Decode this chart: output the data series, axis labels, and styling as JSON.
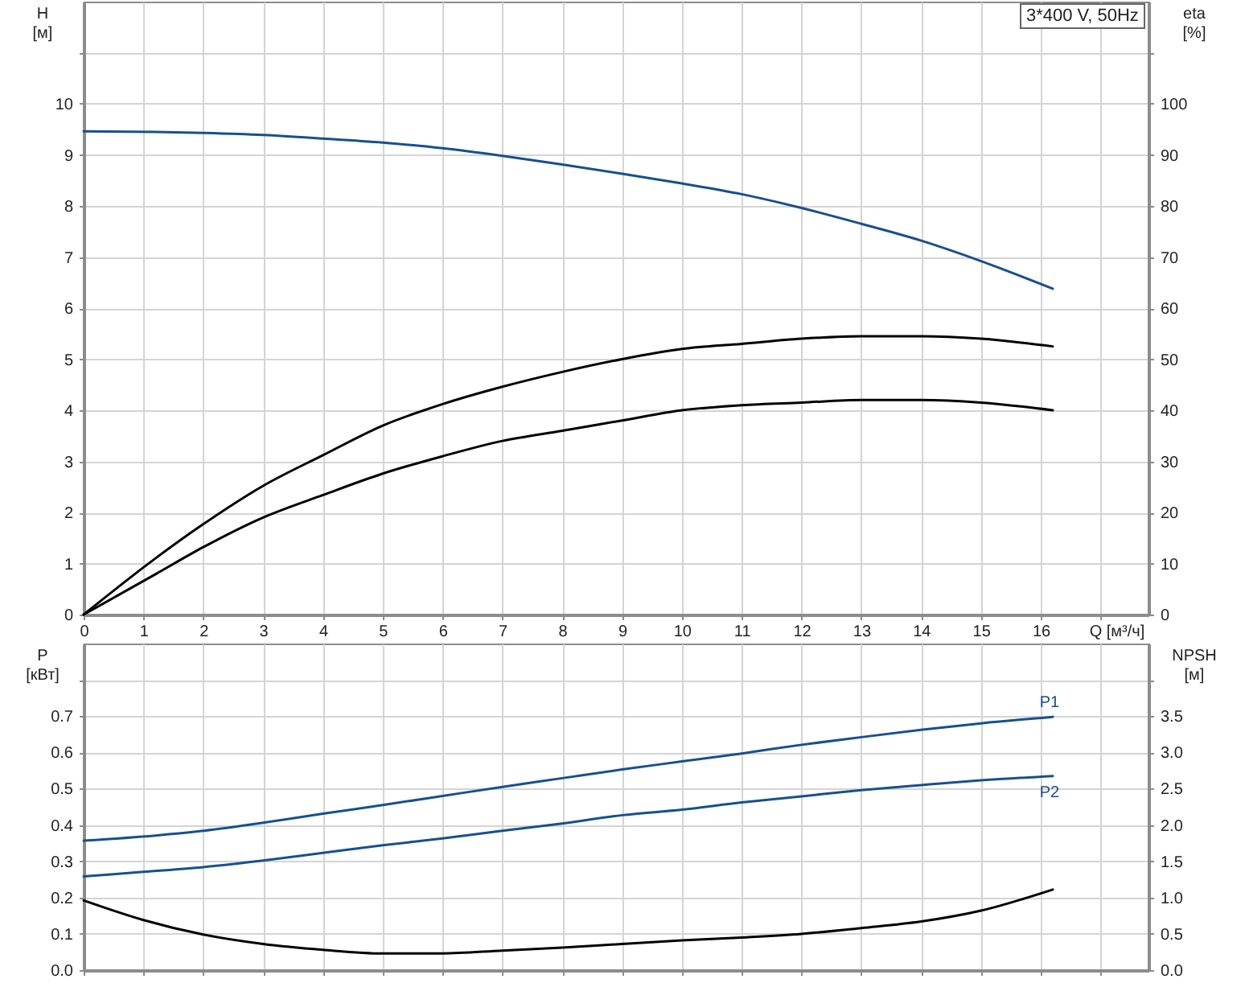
{
  "chart_data": [
    {
      "type": "line",
      "title": "3*400 V, 50Hz",
      "xlabel": "Q [м³/ч]",
      "ylabel": "H [м]",
      "y2label": "eta [%]",
      "xlim": [
        0,
        17.8
      ],
      "xticks": [
        0,
        1,
        2,
        3,
        4,
        5,
        6,
        7,
        8,
        9,
        10,
        11,
        12,
        13,
        14,
        15,
        16,
        {
          "value": 17,
          "label": null
        }
      ],
      "ylim": [
        0,
        12
      ],
      "yticks": [
        0,
        1,
        2,
        3,
        4,
        5,
        6,
        7,
        8,
        9,
        10,
        {
          "value": 11,
          "label": null
        }
      ],
      "y2lim": [
        0,
        120
      ],
      "y2ticks": [
        0,
        10,
        20,
        30,
        40,
        50,
        60,
        70,
        80,
        90,
        100,
        {
          "value": 110,
          "label": null
        }
      ],
      "grid": true,
      "line_style": "solid",
      "series": [
        {
          "color": "#17508e",
          "x": [
            0,
            1.2,
            2,
            3,
            4,
            5,
            6,
            7,
            8,
            9,
            10,
            11,
            12,
            13,
            14,
            15,
            16.2
          ],
          "values": [
            9.46,
            9.45,
            9.43,
            9.39,
            9.32,
            9.24,
            9.13,
            8.98,
            8.81,
            8.63,
            8.44,
            8.23,
            7.96,
            7.65,
            7.32,
            6.92,
            6.38
          ]
        },
        {
          "color": "#000000",
          "axis": "y2",
          "x": [
            0,
            1.2,
            2,
            3,
            4,
            5,
            6,
            7,
            8,
            9,
            10,
            11,
            12,
            13,
            14,
            15,
            16.2
          ],
          "values": [
            0,
            11,
            17.7,
            25.2,
            31.2,
            37,
            41.2,
            44.6,
            47.5,
            50,
            52,
            53,
            54,
            54.5,
            54.5,
            54,
            52.5
          ]
        },
        {
          "color": "#000000",
          "axis": "y2",
          "x": [
            0,
            1.2,
            2,
            3,
            4,
            5,
            6,
            7,
            8,
            9,
            10,
            11,
            12,
            13,
            14,
            15,
            16.2
          ],
          "values": [
            0,
            7.9,
            13.2,
            19,
            23.4,
            27.6,
            31,
            34,
            36,
            38,
            40,
            41,
            41.5,
            42,
            42,
            41.5,
            40
          ]
        }
      ]
    },
    {
      "type": "line",
      "ylabel": "P [кВт]",
      "y2label": "NPSH [м]",
      "xlim": [
        0,
        17.8
      ],
      "xticks": [
        0,
        1,
        2,
        3,
        4,
        5,
        6,
        7,
        8,
        9,
        10,
        11,
        12,
        13,
        14,
        15,
        16,
        {
          "value": 17,
          "label": null
        }
      ],
      "ylim": [
        0,
        0.9
      ],
      "yticks": [
        {
          "value": 0,
          "label": "0.0"
        },
        0.1,
        0.2,
        0.3,
        0.4,
        0.5,
        0.6,
        0.7,
        {
          "value": 0.8,
          "label": null
        }
      ],
      "y2lim": [
        0,
        4.5
      ],
      "y2ticks": [
        {
          "value": 0,
          "label": "0.0"
        },
        0.5,
        {
          "value": 1,
          "label": "1.0"
        },
        1.5,
        {
          "value": 2,
          "label": "2.0"
        },
        2.5,
        {
          "value": 3,
          "label": "3.0"
        },
        3.5,
        {
          "value": 4,
          "label": null
        }
      ],
      "tick_labels": "y",
      "grid": true,
      "line_style": "solid",
      "series": [
        {
          "name": "P1",
          "color": "#17508e",
          "x": [
            0,
            1.2,
            2,
            3,
            4,
            5,
            6,
            7,
            8,
            9,
            10,
            11,
            12,
            13,
            14,
            15,
            16.2
          ],
          "values": [
            0.357,
            0.371,
            0.384,
            0.406,
            0.431,
            0.455,
            0.48,
            0.505,
            0.529,
            0.553,
            0.575,
            0.597,
            0.621,
            0.642,
            0.662,
            0.68,
            0.698
          ]
        },
        {
          "name": "P2",
          "color": "#17508e",
          "x": [
            0,
            1,
            2,
            3,
            4,
            5,
            6,
            7,
            8,
            9,
            10,
            11,
            12,
            13,
            14,
            15,
            16.2
          ],
          "values": [
            0.258,
            0.271,
            0.284,
            0.302,
            0.323,
            0.344,
            0.363,
            0.384,
            0.404,
            0.427,
            0.442,
            0.462,
            0.479,
            0.496,
            0.51,
            0.523,
            0.535
          ]
        },
        {
          "color": "#000000",
          "axis": "y2",
          "x": [
            0,
            1,
            2,
            3,
            4,
            5,
            6,
            7,
            8,
            9,
            10,
            11,
            12,
            13,
            14,
            15,
            16.2
          ],
          "values": [
            0.96,
            0.69,
            0.49,
            0.36,
            0.28,
            0.23,
            0.23,
            0.27,
            0.31,
            0.36,
            0.41,
            0.45,
            0.5,
            0.58,
            0.67,
            0.82,
            1.11
          ]
        }
      ]
    }
  ]
}
